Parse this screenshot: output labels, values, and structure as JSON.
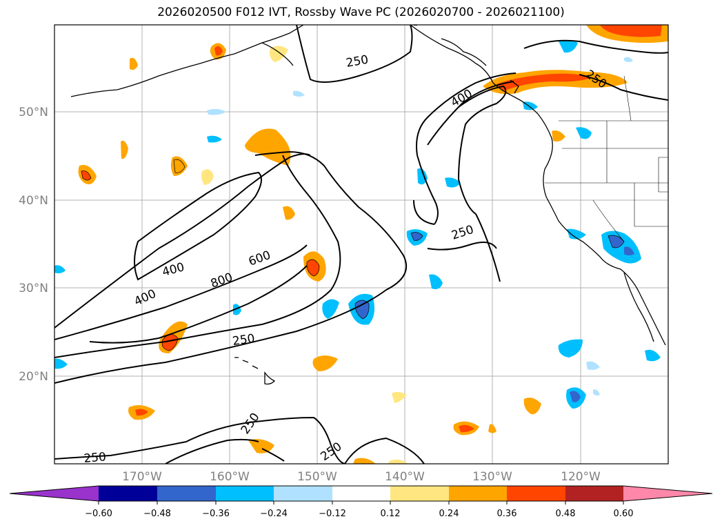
{
  "title": "2026020500 F012 IVT, Rossby Wave PC (2026020700 - 2026021100)",
  "map": {
    "lat_labels": [
      "50°N",
      "40°N",
      "30°N",
      "20°N"
    ],
    "lon_labels": [
      "170°W",
      "160°W",
      "150°W",
      "140°W",
      "130°W",
      "120°W"
    ],
    "contour_labels": [
      "250",
      "400",
      "400",
      "600",
      "800",
      "250",
      "400",
      "250",
      "250",
      "250",
      "250",
      "250"
    ]
  },
  "colorbar": {
    "ticks": [
      "−0.60",
      "−0.48",
      "−0.36",
      "−0.24",
      "−0.12",
      "0.12",
      "0.24",
      "0.36",
      "0.48",
      "0.60"
    ],
    "colors": [
      "#9933cc",
      "#000099",
      "#3366cc",
      "#00bfff",
      "#b0e2ff",
      "#ffffff",
      "#ffe680",
      "#ffa500",
      "#ff4500",
      "#b22222",
      "#ff88aa"
    ]
  }
}
